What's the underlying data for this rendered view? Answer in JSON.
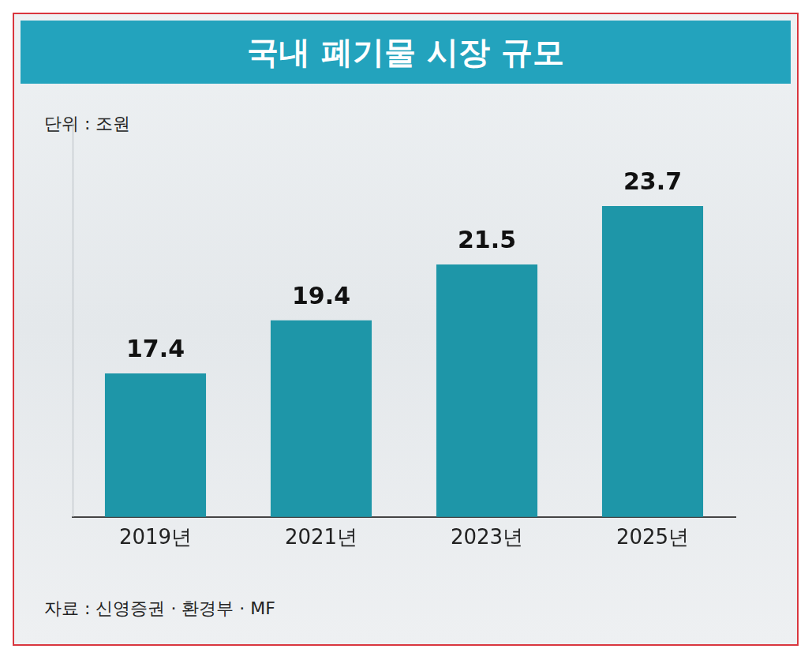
{
  "chart_data": {
    "type": "bar",
    "title": "국내 폐기물 시장 규모",
    "ylabel": "단위 : 조원",
    "source": "자료 : 신영증권 · 환경부 · MF",
    "categories": [
      "2019년",
      "2021년",
      "2023년",
      "2025년"
    ],
    "values": [
      17.4,
      19.4,
      21.5,
      23.7
    ],
    "color": "#1e96a8",
    "ylim": [
      12,
      27
    ],
    "grid": false,
    "data_labels": true,
    "tick_labels": "x"
  }
}
